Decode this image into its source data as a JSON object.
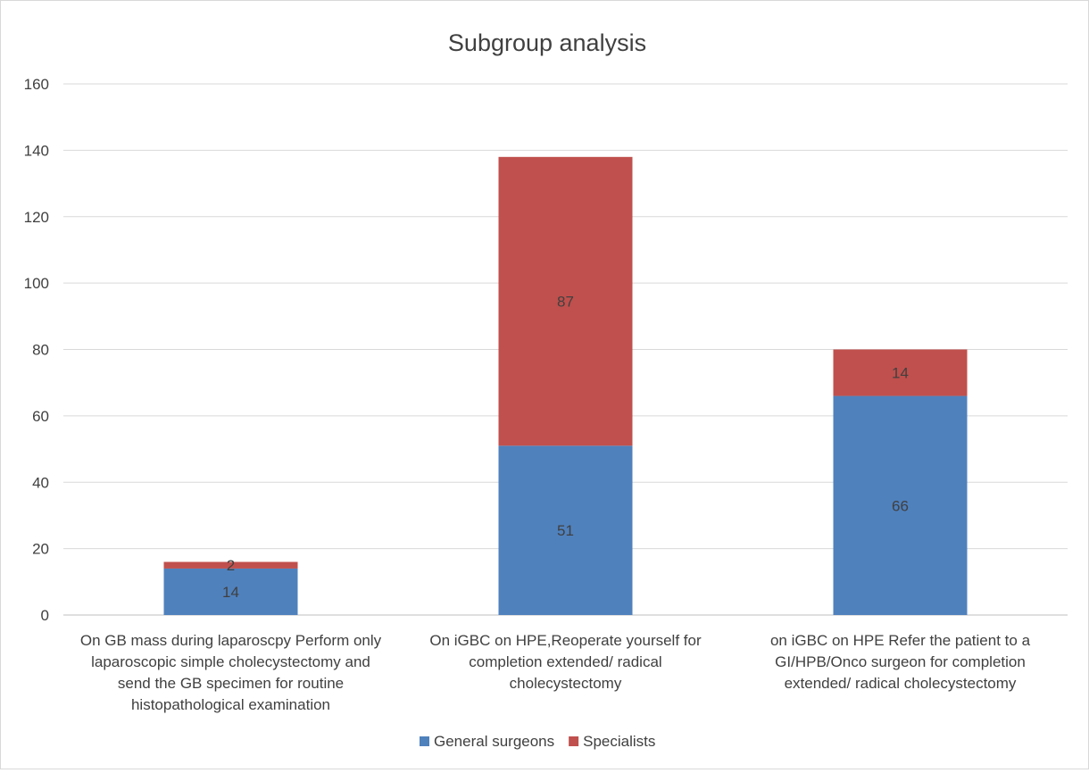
{
  "chart_data": {
    "type": "bar",
    "stacked": true,
    "title": "Subgroup analysis",
    "xlabel": "",
    "ylabel": "",
    "ylim": [
      0,
      160
    ],
    "yticks": [
      "0",
      "20",
      "40",
      "60",
      "80",
      "100",
      "120",
      "140",
      "160"
    ],
    "grid": true,
    "legend_position": "bottom",
    "categories": [
      "On GB mass during laparoscpy Perform only laparoscopic  simple cholecystectomy and send the GB specimen for routine histopathological examination",
      "On iGBC on HPE,Reoperate yourself for completion extended/ radical cholecystectomy",
      "on iGBC on HPE Refer the patient to a GI/HPB/Onco surgeon for completion extended/ radical cholecystectomy"
    ],
    "category_lines": [
      [
        "On GB mass during laparoscpy Perform only",
        "laparoscopic  simple cholecystectomy and",
        "send the GB specimen for routine",
        "histopathological examination"
      ],
      [
        "On iGBC on HPE,Reoperate yourself for",
        "completion extended/ radical",
        "cholecystectomy"
      ],
      [
        "on iGBC on HPE Refer the patient to a",
        "GI/HPB/Onco surgeon for completion",
        "extended/ radical cholecystectomy"
      ]
    ],
    "series": [
      {
        "name": "General surgeons",
        "values": [
          14,
          51,
          66
        ],
        "color": "#4F81BD"
      },
      {
        "name": "Specialists",
        "values": [
          2,
          87,
          14
        ],
        "color": "#C0504D"
      }
    ]
  }
}
